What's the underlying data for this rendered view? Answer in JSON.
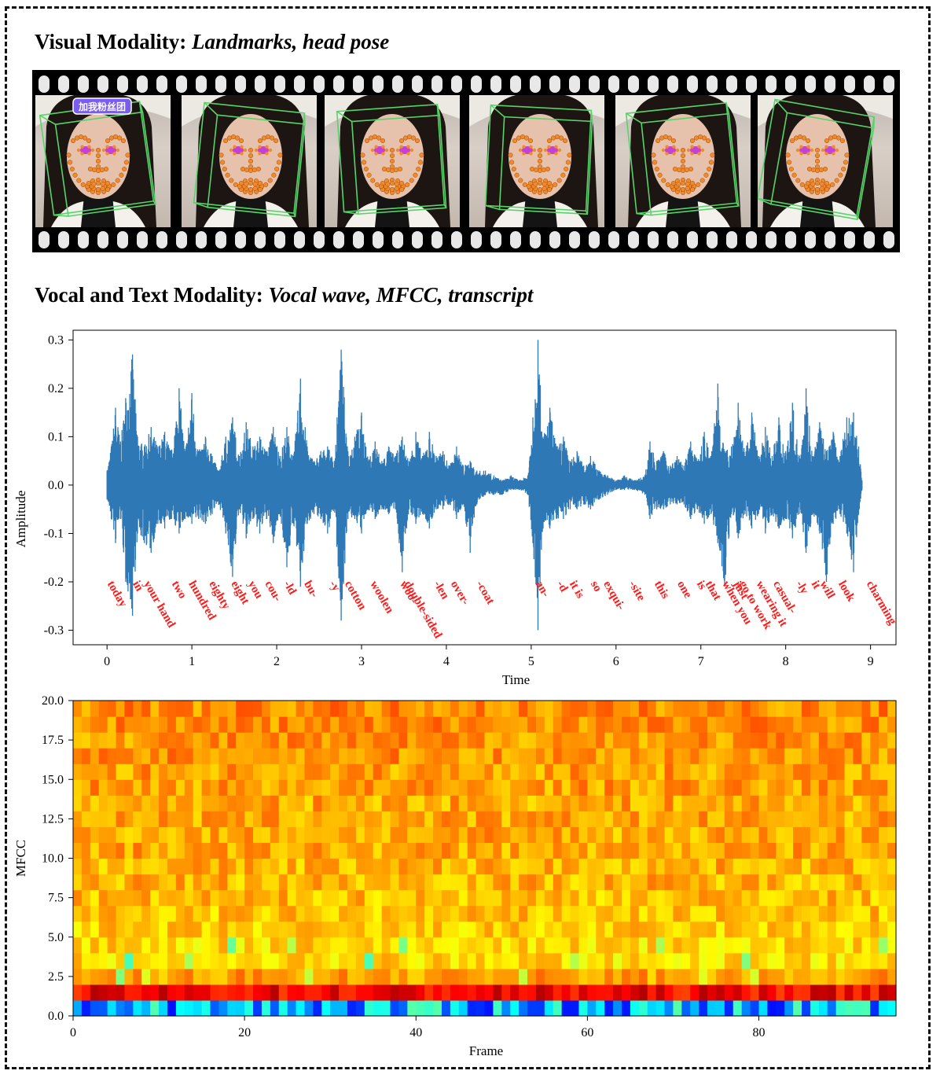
{
  "frame": {
    "border_style": "dashed"
  },
  "visual_section": {
    "title_bold": "Visual Modality:",
    "title_italic": "Landmarks, head pose",
    "frame_count": 6,
    "overlay_caption": "加我粉丝团",
    "colors": {
      "film": "#000000",
      "landmark": "#f08a2a",
      "eye": "#c23fd8",
      "pose_box": "#58d36a"
    }
  },
  "audio_section": {
    "title_bold": "Vocal and Text Modality:",
    "title_italic": "Vocal wave, MFCC, transcript"
  },
  "chart_data": [
    {
      "type": "line",
      "xlabel": "Time",
      "ylabel": "Amplitude",
      "xlim": [
        -0.4,
        9.3
      ],
      "ylim": [
        -0.33,
        0.32
      ],
      "xticks": [
        0,
        1,
        2,
        3,
        4,
        5,
        6,
        7,
        8,
        9
      ],
      "yticks": [
        0.3,
        0.2,
        0.1,
        0.0,
        -0.1,
        -0.2,
        -0.3
      ],
      "ytick_labels": [
        "0.3",
        "0.2",
        "0.1",
        "0.0",
        "-0.1",
        "-0.2",
        "-0.3"
      ],
      "grid": false,
      "color": "#2e78b5",
      "envelope": [
        {
          "t": 0.0,
          "hi": 0.03,
          "lo": -0.03
        },
        {
          "t": 0.05,
          "hi": 0.08,
          "lo": -0.07
        },
        {
          "t": 0.1,
          "hi": 0.16,
          "lo": -0.12
        },
        {
          "t": 0.16,
          "hi": 0.09,
          "lo": -0.07
        },
        {
          "t": 0.22,
          "hi": 0.18,
          "lo": -0.2
        },
        {
          "t": 0.3,
          "hi": 0.27,
          "lo": -0.27
        },
        {
          "t": 0.36,
          "hi": 0.1,
          "lo": -0.1
        },
        {
          "t": 0.44,
          "hi": 0.08,
          "lo": -0.12
        },
        {
          "t": 0.52,
          "hi": 0.12,
          "lo": -0.14
        },
        {
          "t": 0.6,
          "hi": 0.08,
          "lo": -0.08
        },
        {
          "t": 0.68,
          "hi": 0.11,
          "lo": -0.09
        },
        {
          "t": 0.76,
          "hi": 0.07,
          "lo": -0.07
        },
        {
          "t": 0.85,
          "hi": 0.2,
          "lo": -0.1
        },
        {
          "t": 0.92,
          "hi": 0.07,
          "lo": -0.07
        },
        {
          "t": 1.0,
          "hi": 0.19,
          "lo": -0.08
        },
        {
          "t": 1.08,
          "hi": 0.07,
          "lo": -0.07
        },
        {
          "t": 1.16,
          "hi": 0.1,
          "lo": -0.08
        },
        {
          "t": 1.24,
          "hi": 0.06,
          "lo": -0.06
        },
        {
          "t": 1.32,
          "hi": 0.03,
          "lo": -0.04
        },
        {
          "t": 1.4,
          "hi": 0.1,
          "lo": -0.1
        },
        {
          "t": 1.48,
          "hi": 0.14,
          "lo": -0.19
        },
        {
          "t": 1.56,
          "hi": 0.06,
          "lo": -0.05
        },
        {
          "t": 1.64,
          "hi": 0.13,
          "lo": -0.11
        },
        {
          "t": 1.72,
          "hi": 0.08,
          "lo": -0.07
        },
        {
          "t": 1.8,
          "hi": 0.1,
          "lo": -0.1
        },
        {
          "t": 1.88,
          "hi": 0.07,
          "lo": -0.07
        },
        {
          "t": 1.96,
          "hi": 0.12,
          "lo": -0.12
        },
        {
          "t": 2.04,
          "hi": 0.06,
          "lo": -0.06
        },
        {
          "t": 2.12,
          "hi": 0.12,
          "lo": -0.17
        },
        {
          "t": 2.2,
          "hi": 0.06,
          "lo": -0.08
        },
        {
          "t": 2.28,
          "hi": 0.22,
          "lo": -0.21
        },
        {
          "t": 2.36,
          "hi": 0.08,
          "lo": -0.08
        },
        {
          "t": 2.44,
          "hi": 0.05,
          "lo": -0.06
        },
        {
          "t": 2.52,
          "hi": 0.07,
          "lo": -0.07
        },
        {
          "t": 2.6,
          "hi": 0.08,
          "lo": -0.1
        },
        {
          "t": 2.68,
          "hi": 0.05,
          "lo": -0.05
        },
        {
          "t": 2.76,
          "hi": 0.28,
          "lo": -0.28
        },
        {
          "t": 2.84,
          "hi": 0.07,
          "lo": -0.07
        },
        {
          "t": 2.92,
          "hi": 0.1,
          "lo": -0.07
        },
        {
          "t": 3.0,
          "hi": 0.15,
          "lo": -0.1
        },
        {
          "t": 3.08,
          "hi": 0.05,
          "lo": -0.05
        },
        {
          "t": 3.16,
          "hi": 0.09,
          "lo": -0.07
        },
        {
          "t": 3.24,
          "hi": 0.05,
          "lo": -0.05
        },
        {
          "t": 3.32,
          "hi": 0.08,
          "lo": -0.06
        },
        {
          "t": 3.4,
          "hi": 0.06,
          "lo": -0.05
        },
        {
          "t": 3.48,
          "hi": 0.1,
          "lo": -0.18
        },
        {
          "t": 3.56,
          "hi": 0.05,
          "lo": -0.05
        },
        {
          "t": 3.64,
          "hi": 0.11,
          "lo": -0.08
        },
        {
          "t": 3.72,
          "hi": 0.06,
          "lo": -0.06
        },
        {
          "t": 3.8,
          "hi": 0.11,
          "lo": -0.09
        },
        {
          "t": 3.88,
          "hi": 0.06,
          "lo": -0.05
        },
        {
          "t": 3.96,
          "hi": 0.07,
          "lo": -0.05
        },
        {
          "t": 4.04,
          "hi": 0.04,
          "lo": -0.04
        },
        {
          "t": 4.12,
          "hi": 0.08,
          "lo": -0.07
        },
        {
          "t": 4.2,
          "hi": 0.04,
          "lo": -0.04
        },
        {
          "t": 4.28,
          "hi": 0.05,
          "lo": -0.14
        },
        {
          "t": 4.36,
          "hi": 0.03,
          "lo": -0.04
        },
        {
          "t": 4.46,
          "hi": 0.03,
          "lo": -0.02
        },
        {
          "t": 4.56,
          "hi": 0.02,
          "lo": -0.02
        },
        {
          "t": 4.66,
          "hi": 0.01,
          "lo": -0.02
        },
        {
          "t": 4.76,
          "hi": 0.02,
          "lo": -0.01
        },
        {
          "t": 4.86,
          "hi": 0.01,
          "lo": -0.01
        },
        {
          "t": 4.96,
          "hi": 0.02,
          "lo": -0.02
        },
        {
          "t": 5.02,
          "hi": 0.14,
          "lo": -0.12
        },
        {
          "t": 5.08,
          "hi": 0.3,
          "lo": -0.3
        },
        {
          "t": 5.14,
          "hi": 0.1,
          "lo": -0.09
        },
        {
          "t": 5.22,
          "hi": 0.16,
          "lo": -0.09
        },
        {
          "t": 5.3,
          "hi": 0.08,
          "lo": -0.07
        },
        {
          "t": 5.38,
          "hi": 0.1,
          "lo": -0.07
        },
        {
          "t": 5.46,
          "hi": 0.05,
          "lo": -0.05
        },
        {
          "t": 5.54,
          "hi": 0.07,
          "lo": -0.05
        },
        {
          "t": 5.62,
          "hi": 0.04,
          "lo": -0.04
        },
        {
          "t": 5.7,
          "hi": 0.06,
          "lo": -0.05
        },
        {
          "t": 5.8,
          "hi": 0.03,
          "lo": -0.03
        },
        {
          "t": 5.9,
          "hi": 0.02,
          "lo": -0.02
        },
        {
          "t": 6.0,
          "hi": 0.01,
          "lo": -0.01
        },
        {
          "t": 6.1,
          "hi": 0.02,
          "lo": -0.01
        },
        {
          "t": 6.22,
          "hi": 0.01,
          "lo": -0.01
        },
        {
          "t": 6.34,
          "hi": 0.02,
          "lo": -0.02
        },
        {
          "t": 6.4,
          "hi": 0.09,
          "lo": -0.07
        },
        {
          "t": 6.48,
          "hi": 0.05,
          "lo": -0.05
        },
        {
          "t": 6.56,
          "hi": 0.07,
          "lo": -0.05
        },
        {
          "t": 6.64,
          "hi": 0.04,
          "lo": -0.04
        },
        {
          "t": 6.72,
          "hi": 0.06,
          "lo": -0.04
        },
        {
          "t": 6.8,
          "hi": 0.04,
          "lo": -0.04
        },
        {
          "t": 6.88,
          "hi": 0.09,
          "lo": -0.07
        },
        {
          "t": 6.96,
          "hi": 0.05,
          "lo": -0.05
        },
        {
          "t": 7.04,
          "hi": 0.11,
          "lo": -0.08
        },
        {
          "t": 7.12,
          "hi": 0.06,
          "lo": -0.06
        },
        {
          "t": 7.2,
          "hi": 0.21,
          "lo": -0.12
        },
        {
          "t": 7.28,
          "hi": 0.07,
          "lo": -0.21
        },
        {
          "t": 7.36,
          "hi": 0.08,
          "lo": -0.06
        },
        {
          "t": 7.44,
          "hi": 0.17,
          "lo": -0.11
        },
        {
          "t": 7.52,
          "hi": 0.06,
          "lo": -0.06
        },
        {
          "t": 7.6,
          "hi": 0.15,
          "lo": -0.09
        },
        {
          "t": 7.68,
          "hi": 0.06,
          "lo": -0.06
        },
        {
          "t": 7.76,
          "hi": 0.12,
          "lo": -0.1
        },
        {
          "t": 7.84,
          "hi": 0.06,
          "lo": -0.06
        },
        {
          "t": 7.92,
          "hi": 0.14,
          "lo": -0.09
        },
        {
          "t": 8.0,
          "hi": 0.07,
          "lo": -0.07
        },
        {
          "t": 8.08,
          "hi": 0.17,
          "lo": -0.11
        },
        {
          "t": 8.16,
          "hi": 0.06,
          "lo": -0.06
        },
        {
          "t": 8.24,
          "hi": 0.2,
          "lo": -0.14
        },
        {
          "t": 8.32,
          "hi": 0.06,
          "lo": -0.06
        },
        {
          "t": 8.4,
          "hi": 0.13,
          "lo": -0.1
        },
        {
          "t": 8.48,
          "hi": 0.07,
          "lo": -0.2
        },
        {
          "t": 8.56,
          "hi": 0.11,
          "lo": -0.08
        },
        {
          "t": 8.64,
          "hi": 0.06,
          "lo": -0.06
        },
        {
          "t": 8.72,
          "hi": 0.14,
          "lo": -0.1
        },
        {
          "t": 8.8,
          "hi": 0.15,
          "lo": -0.18
        },
        {
          "t": 8.86,
          "hi": 0.08,
          "lo": -0.06
        },
        {
          "t": 8.9,
          "hi": 0.01,
          "lo": -0.01
        }
      ],
      "transcript_color": "#ff1a1a",
      "annotations": [
        {
          "text": "today",
          "t": 0.0
        },
        {
          "text": "in",
          "t": 0.3
        },
        {
          "text": "your hand",
          "t": 0.43
        },
        {
          "text": "two",
          "t": 0.76
        },
        {
          "text": "hundred",
          "t": 0.96
        },
        {
          "text": "eighty",
          "t": 1.2
        },
        {
          "text": "eight",
          "t": 1.46
        },
        {
          "text": "you",
          "t": 1.66
        },
        {
          "text": "cou-",
          "t": 1.86
        },
        {
          "text": "-ld",
          "t": 2.08
        },
        {
          "text": "bu-",
          "t": 2.32
        },
        {
          "text": "-y",
          "t": 2.62
        },
        {
          "text": "cotton",
          "t": 2.8
        },
        {
          "text": "woolen",
          "t": 3.1
        },
        {
          "text": "woo-",
          "t": 3.45
        },
        {
          "text": "double-sided",
          "t": 3.5
        },
        {
          "text": "-len",
          "t": 3.85
        },
        {
          "text": "over-",
          "t": 4.05
        },
        {
          "text": "-coat",
          "t": 4.35
        },
        {
          "text": "an-",
          "t": 5.05
        },
        {
          "text": "-d",
          "t": 5.3
        },
        {
          "text": "it is",
          "t": 5.45
        },
        {
          "text": "so",
          "t": 5.7
        },
        {
          "text": "exqui-",
          "t": 5.85
        },
        {
          "text": "-site",
          "t": 6.15
        },
        {
          "text": "this",
          "t": 6.45
        },
        {
          "text": "one",
          "t": 6.72
        },
        {
          "text": "is",
          "t": 6.95
        },
        {
          "text": "that",
          "t": 7.05
        },
        {
          "text": "when you",
          "t": 7.25
        },
        {
          "text": "go to work",
          "t": 7.45
        },
        {
          "text": "just",
          "t": 7.38
        },
        {
          "text": "wearing it",
          "t": 7.65
        },
        {
          "text": "casual-",
          "t": 7.85
        },
        {
          "text": "-ly",
          "t": 8.12
        },
        {
          "text": "it",
          "t": 8.3
        },
        {
          "text": "will",
          "t": 8.4
        },
        {
          "text": "look",
          "t": 8.62
        },
        {
          "text": "charming",
          "t": 8.95
        }
      ]
    },
    {
      "type": "heatmap",
      "xlabel": "Frame",
      "ylabel": "MFCC",
      "xlim": [
        0,
        96
      ],
      "ylim": [
        0,
        20
      ],
      "xticks": [
        0,
        20,
        40,
        60,
        80
      ],
      "yticks": [
        0.0,
        2.5,
        5.0,
        7.5,
        10.0,
        12.5,
        15.0,
        17.5,
        20.0
      ],
      "ytick_labels": [
        "0.0",
        "2.5",
        "5.0",
        "7.5",
        "10.0",
        "12.5",
        "15.0",
        "17.5",
        "20.0"
      ],
      "n_frames": 96,
      "n_coeffs": 20,
      "colormap": "jet",
      "value_range": [
        0,
        1
      ],
      "row_levels": [
        0.3,
        0.88,
        0.72,
        0.66,
        0.66,
        0.67,
        0.68,
        0.69,
        0.7,
        0.7,
        0.71,
        0.71,
        0.71,
        0.71,
        0.72,
        0.72,
        0.73,
        0.73,
        0.74,
        0.74
      ]
    }
  ]
}
